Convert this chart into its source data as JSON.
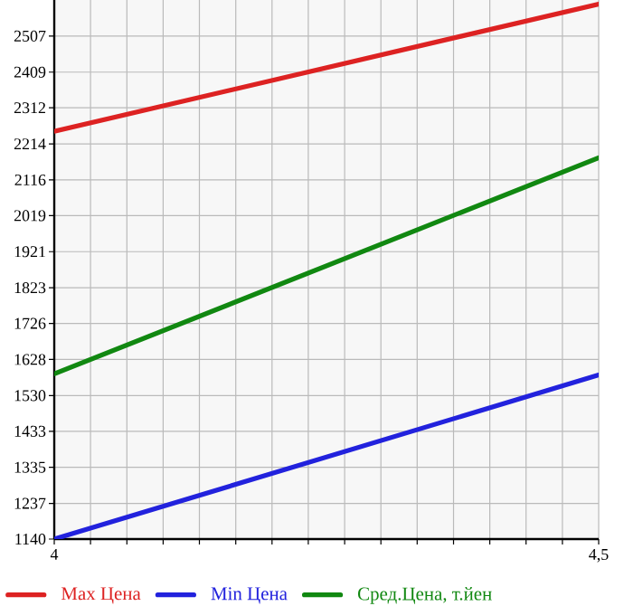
{
  "chart_data": {
    "type": "line",
    "x": [
      4,
      4.5
    ],
    "series": [
      {
        "name": "Max Цена",
        "color": "#dd2222",
        "values": [
          2248,
          2594
        ]
      },
      {
        "name": "Min Цена",
        "color": "#2222dd",
        "values": [
          1140,
          1586
        ]
      },
      {
        "name": "Сред.Цена, т.йен",
        "color": "#118811",
        "values": [
          1589,
          2176
        ]
      }
    ],
    "xlim": [
      4,
      4.5
    ],
    "xticks": [
      4,
      {
        "value": 4.0333,
        "label": null
      },
      {
        "value": 4.0667,
        "label": null
      },
      {
        "value": 4.1,
        "label": null
      },
      {
        "value": 4.1333,
        "label": null
      },
      {
        "value": 4.1667,
        "label": null
      },
      {
        "value": 4.2,
        "label": null
      },
      {
        "value": 4.2333,
        "label": null
      },
      {
        "value": 4.2667,
        "label": null
      },
      {
        "value": 4.3,
        "label": null
      },
      {
        "value": 4.3333,
        "label": null
      },
      {
        "value": 4.3667,
        "label": null
      },
      {
        "value": 4.4,
        "label": null
      },
      {
        "value": 4.4333,
        "label": null
      },
      {
        "value": 4.4667,
        "label": null
      },
      {
        "value": 4.5,
        "label": "4,5"
      }
    ],
    "ylim": [
      1140,
      2605
    ],
    "yticks": [
      1140,
      1237,
      1335,
      1433,
      1530,
      1628,
      1726,
      1823,
      1921,
      2019,
      2116,
      2214,
      2312,
      2409,
      2507
    ],
    "grid": true,
    "legend": "bottom",
    "marker": "none",
    "line_style": "solid"
  }
}
